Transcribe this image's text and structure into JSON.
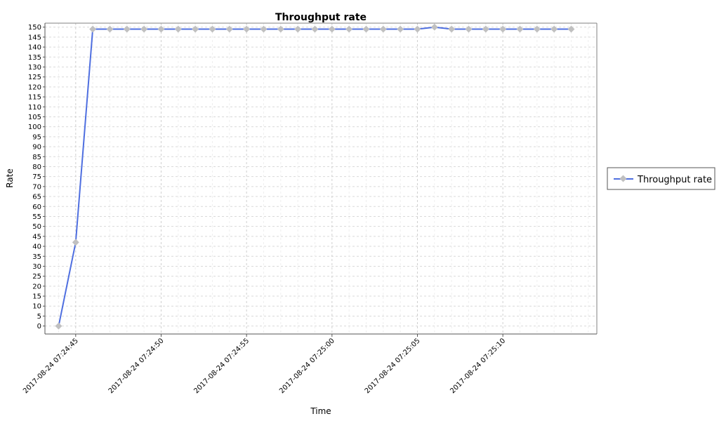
{
  "chart_data": {
    "type": "line",
    "title": "Throughput rate",
    "xlabel": "Time",
    "ylabel": "Rate",
    "ylim": [
      -4,
      152
    ],
    "yticks": [
      0,
      5,
      10,
      15,
      20,
      25,
      30,
      35,
      40,
      45,
      50,
      55,
      60,
      65,
      70,
      75,
      80,
      85,
      90,
      95,
      100,
      105,
      110,
      115,
      120,
      125,
      130,
      135,
      140,
      145,
      150
    ],
    "xlim": [
      "2017-08-24 07:24:43.2",
      "2017-08-24 07:25:15.5"
    ],
    "xticks": [
      "2017-08-24 07:24:45",
      "2017-08-24 07:24:50",
      "2017-08-24 07:24:55",
      "2017-08-24 07:25:00",
      "2017-08-24 07:25:05",
      "2017-08-24 07:25:10"
    ],
    "grid": true,
    "legend_position": "right",
    "series": [
      {
        "name": "Throughput rate",
        "color": "#4f6fe0",
        "marker_color": "#c0c0c0",
        "x": [
          "2017-08-24 07:24:44",
          "2017-08-24 07:24:45",
          "2017-08-24 07:24:46",
          "2017-08-24 07:24:47",
          "2017-08-24 07:24:48",
          "2017-08-24 07:24:49",
          "2017-08-24 07:24:50",
          "2017-08-24 07:24:51",
          "2017-08-24 07:24:52",
          "2017-08-24 07:24:53",
          "2017-08-24 07:24:54",
          "2017-08-24 07:24:55",
          "2017-08-24 07:24:56",
          "2017-08-24 07:24:57",
          "2017-08-24 07:24:58",
          "2017-08-24 07:24:59",
          "2017-08-24 07:25:00",
          "2017-08-24 07:25:01",
          "2017-08-24 07:25:02",
          "2017-08-24 07:25:03",
          "2017-08-24 07:25:04",
          "2017-08-24 07:25:05",
          "2017-08-24 07:25:06",
          "2017-08-24 07:25:07",
          "2017-08-24 07:25:08",
          "2017-08-24 07:25:09",
          "2017-08-24 07:25:10",
          "2017-08-24 07:25:11",
          "2017-08-24 07:25:12",
          "2017-08-24 07:25:13",
          "2017-08-24 07:25:14"
        ],
        "values": [
          0,
          42,
          149,
          149,
          149,
          149,
          149,
          149,
          149,
          149,
          149,
          149,
          149,
          149,
          149,
          149,
          149,
          149,
          149,
          149,
          149,
          149,
          150,
          149,
          149,
          149,
          149,
          149,
          149,
          149,
          149
        ]
      }
    ]
  }
}
